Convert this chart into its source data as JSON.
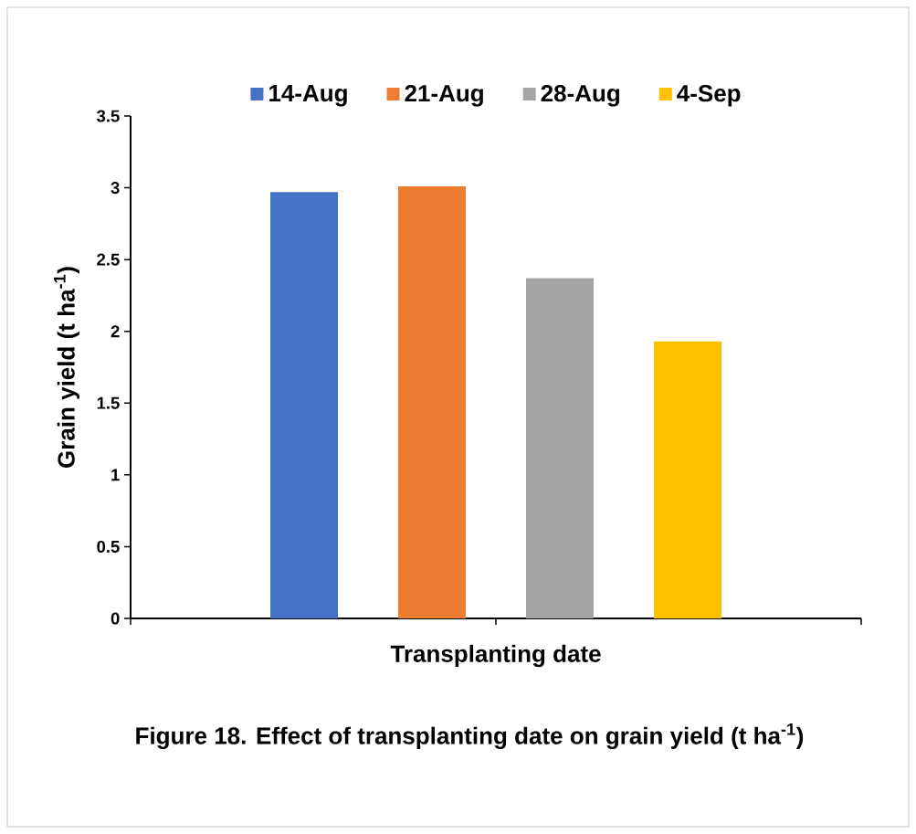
{
  "chart_data": {
    "type": "bar",
    "categories": [
      null
    ],
    "series": [
      {
        "name": "14-Aug",
        "color": "#4472c4",
        "values": [
          2.97
        ]
      },
      {
        "name": "21-Aug",
        "color": "#ed7d31",
        "values": [
          3.01
        ]
      },
      {
        "name": "28-Aug",
        "color": "#a5a5a5",
        "values": [
          2.37
        ]
      },
      {
        "name": "4-Sep",
        "color": "#ffc000",
        "values": [
          1.93
        ]
      }
    ],
    "xlabel": "Transplanting date",
    "ylabel": "Grain yield (t ha$^{-1}$)",
    "ylim": [
      0,
      3.5
    ],
    "yticks": [
      0,
      0.5,
      1,
      1.5,
      2,
      2.5,
      3,
      3.5
    ],
    "legend": "top",
    "annotations": [
      "Figure 18. Effect of transplanting date on grain yield (t ha$^{-1}$)"
    ]
  }
}
